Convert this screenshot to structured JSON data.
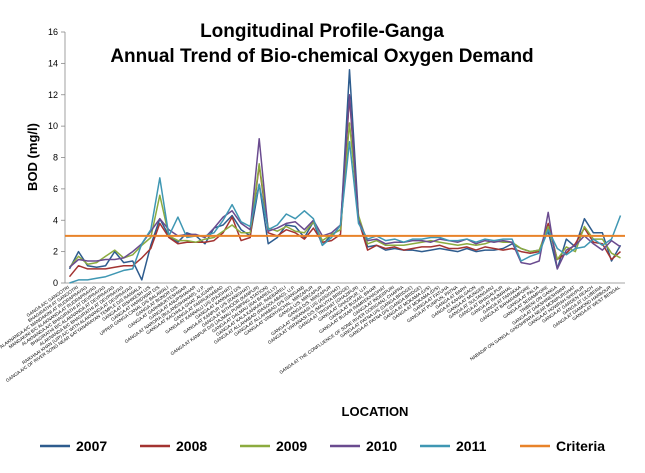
{
  "chart_data": {
    "type": "line",
    "title": [
      "Longitudinal Profile-Ganga",
      "Annual Trend of Bio-chemical Oxygen Demand"
    ],
    "xlabel": "LOCATION",
    "ylabel": "BOD (mg/l)",
    "ylim": [
      0,
      16
    ],
    "yticks": [
      0,
      2,
      4,
      6,
      8,
      10,
      12,
      14,
      16
    ],
    "grid": false,
    "legend_position": "bottom",
    "categories": [
      "GANGA A/C GANGOTRI",
      "BHAGIRATHI AT GANGOTRI",
      "ALAKNANDA A/C MANDAKINI AT RUDRAPRAYAG",
      "MANDAKINI B/C ALAKNANDA AT RUDRAPRAYAG",
      "ALAKNANDA A/C BHAGIRATHI AT DEVPRAYAG",
      "BHAGIRATHI B/C ALAKNANDA AT DEVPRAYAG",
      "ALAKNANDA B/C BHAGIRATHI AT DEVPRAYAG",
      "RAIKHAAI KHAN (U/P) A/C WITH ALAKNANDA AT DEVPRAYAG",
      "GANGA A/C OF RIVER SONG NEAR SATYANARAYAN TEMPLE D/S RAIWALA",
      "GANGA AT RISHIKESH U/S",
      "GANGA AT HARIDWAR D/S",
      "UPPER GANGA CANAL D/S BALAWALI",
      "GANGA AT BIJNOR D/S",
      "GANGA AT GARHMUKTESHWAR",
      "GANGA AT ANUPSHAHAR",
      "GANGA AT NARORA (BULANDSHAHAR), U.P.",
      "GANGA AT KACHHLA GHAT, ALIGARH",
      "GANGA AT FARRUKHABAD",
      "GANGA AT KANNAUJ U/S (RAJGHAT)",
      "GANGA AT KANNAUJ D/S",
      "GANGA AT KANPUR U/S (RANIGHAT)",
      "GANGA AT BITHOOR (KANPUR)",
      "GANGA AT KANPUR D/S (JAJMAU PUMPING STATION)",
      "GANGA AT DALMAU (RAI BAREILLY)",
      "GANGA AT KALA KANKAR, RAEBARELI",
      "GANGA AT ALLAHABAD (RASOOLABAD), U.P.",
      "GANGA AT ALLAHABAD D/S (SANGAM)",
      "GANGA AT VINDHYACHAL, MIRZAPUR",
      "GANGA U/S, MIRZAPUR",
      "GANGA D/S, MIRZAPUR",
      "GANGA AT VARANASI U/S (ASSIGHAT)",
      "GANGA AT VARANASI D/S (MALVIYA BRIDGE)",
      "GANGA AT TRIGHAT (GHAZIPUR)",
      "GANGA AT GHAZIPUR, U.P.",
      "GANGA AT BUXAR, BIHAR",
      "GANGA AT BUXAR RAMREKHAGHAT",
      "GANGA AT INDERPURI",
      "GANGA AT THE CONFLUENCE OF SONE RIVER DORIGANJ, CHAPRA",
      "GANGA AT PATNA U/S (GANGA BRIDGE)",
      "GANGA AT PATNA D/S (GANGA BRIDGE)",
      "GANGA AT MOKAMA (U/S)",
      "GANGA AT MOKAMA (D/S)",
      "GANGA AT FATUHA",
      "GANGA AT PUNPUN, PATNA",
      "GANGA AT BARH",
      "GANGA AT KAHALGAON",
      "GANGA AT MUNGER",
      "GANGA AT SULTANGANJ",
      "GANGA AT BHAGALPUR",
      "GANGA AT RAJMAHAL",
      "GANGA AT FARAKKA",
      "GANGA AT BAHARAMPORE",
      "GANGA AT PALTA",
      "GANGA AT SERAMPORE",
      "TRIBENI ON GANGA",
      "GANGA AT DAKSHINESHWAR",
      "NABADIP ON GANGA, GHOSHPARA NEAR MONIPURGHAT",
      "GANGA AT HOWRAH-SHIVPUR",
      "GANGA AT GARDEN REACH",
      "GANGA AT ULUBERIA",
      "GANGA AT DIAMOND HARBOUR",
      "GANGA AT WEST BENGAL"
    ],
    "series": [
      {
        "name": "2007",
        "color": "#2e5c8e",
        "values": [
          0.9,
          2.0,
          1.1,
          1.0,
          1.1,
          2.0,
          1.3,
          1.4,
          0.2,
          2.4,
          4.1,
          3.0,
          2.6,
          3.2,
          3.0,
          2.5,
          3.5,
          3.7,
          4.3,
          3.4,
          3.0,
          6.3,
          2.5,
          2.9,
          3.7,
          3.6,
          2.9,
          3.9,
          2.4,
          3.1,
          3.4,
          13.6,
          4.2,
          2.3,
          2.4,
          2.1,
          2.2,
          2.1,
          2.1,
          2.0,
          2.1,
          2.2,
          2.1,
          2.0,
          2.2,
          2.0,
          2.1,
          2.1,
          2.2,
          2.5,
          2.2,
          2.0,
          2.1,
          3.3,
          0.9,
          2.8,
          2.3,
          4.1,
          3.2,
          3.2,
          1.4,
          2.4
        ]
      },
      {
        "name": "2008",
        "color": "#a33331",
        "values": [
          0.4,
          1.1,
          0.9,
          0.9,
          0.9,
          1.0,
          1.1,
          1.1,
          1.6,
          2.2,
          3.8,
          2.9,
          2.5,
          2.6,
          2.6,
          2.6,
          2.7,
          3.2,
          4.2,
          2.7,
          2.9,
          7.5,
          3.2,
          3.0,
          3.4,
          3.2,
          2.8,
          3.5,
          2.6,
          2.7,
          3.1,
          11.9,
          4.0,
          2.1,
          2.4,
          2.2,
          2.3,
          2.1,
          2.2,
          2.3,
          2.3,
          2.4,
          2.2,
          2.2,
          2.3,
          2.1,
          2.3,
          2.2,
          2.1,
          2.2,
          2.0,
          1.9,
          2.0,
          3.8,
          1.5,
          1.9,
          2.5,
          3.5,
          2.6,
          2.5,
          1.5,
          2.0
        ]
      },
      {
        "name": "2009",
        "color": "#8cab3f",
        "values": [
          1.0,
          1.7,
          1.2,
          1.3,
          1.7,
          2.1,
          1.6,
          1.8,
          2.4,
          2.9,
          5.6,
          3.0,
          2.7,
          2.7,
          2.6,
          2.8,
          2.9,
          3.3,
          3.7,
          3.2,
          3.2,
          7.6,
          3.5,
          3.3,
          3.6,
          3.3,
          3.2,
          3.9,
          2.7,
          3.1,
          3.4,
          10.2,
          4.3,
          2.5,
          2.7,
          2.4,
          2.4,
          2.4,
          2.5,
          2.6,
          2.7,
          2.6,
          2.5,
          2.4,
          2.5,
          2.4,
          2.5,
          2.7,
          2.6,
          2.6,
          2.2,
          2.0,
          2.1,
          3.6,
          1.5,
          2.3,
          2.0,
          3.6,
          2.8,
          2.8,
          1.9,
          1.6
        ]
      },
      {
        "name": "2010",
        "color": "#6a4b8f",
        "values": [
          1.0,
          1.5,
          1.4,
          1.4,
          1.5,
          1.5,
          1.6,
          2.0,
          2.5,
          3.3,
          4.1,
          3.4,
          3.0,
          3.1,
          3.1,
          2.9,
          3.5,
          4.2,
          4.6,
          3.8,
          3.4,
          9.2,
          3.3,
          3.5,
          3.8,
          3.9,
          3.4,
          4.0,
          3.0,
          3.2,
          3.7,
          12.0,
          4.0,
          2.7,
          2.8,
          2.5,
          2.6,
          2.6,
          2.7,
          2.7,
          2.6,
          2.8,
          2.7,
          2.6,
          2.8,
          2.5,
          2.7,
          2.6,
          2.7,
          2.6,
          1.3,
          1.2,
          1.4,
          4.5,
          0.9,
          2.1,
          2.4,
          3.0,
          2.5,
          2.1,
          2.7,
          2.3
        ]
      },
      {
        "name": "2011",
        "color": "#3f97b3",
        "values": [
          0.0,
          0.2,
          0.2,
          0.3,
          0.4,
          0.6,
          0.8,
          0.9,
          2.5,
          3.4,
          6.7,
          3.0,
          4.2,
          2.9,
          3.0,
          3.0,
          3.2,
          4.0,
          5.0,
          3.9,
          3.6,
          6.3,
          3.4,
          3.7,
          4.4,
          4.1,
          4.6,
          4.1,
          2.4,
          2.9,
          3.7,
          9.0,
          3.8,
          2.8,
          3.0,
          2.7,
          2.8,
          2.6,
          2.8,
          2.8,
          2.9,
          2.9,
          2.7,
          2.7,
          2.8,
          2.6,
          2.8,
          2.7,
          2.8,
          2.8,
          1.4,
          1.7,
          1.9,
          3.4,
          2.2,
          1.8,
          2.2,
          2.3,
          2.8,
          2.4,
          2.8,
          4.3
        ]
      },
      {
        "name": "Criteria",
        "color": "#e8832a",
        "constant": 3
      }
    ]
  }
}
